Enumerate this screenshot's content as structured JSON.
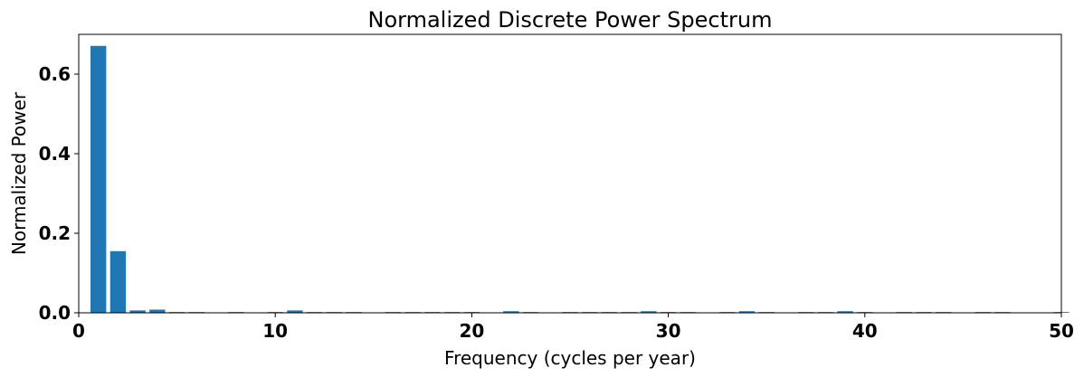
{
  "chart_data": {
    "type": "bar",
    "title": "Normalized Discrete Power Spectrum",
    "xlabel": "Frequency (cycles per year)",
    "ylabel": "Normalized Power",
    "xlim": [
      0,
      50
    ],
    "ylim": [
      0,
      0.7
    ],
    "xticks": [
      0,
      10,
      20,
      30,
      40,
      50
    ],
    "yticks": [
      0.0,
      0.2,
      0.4,
      0.6
    ],
    "xtick_labels": [
      "0",
      "10",
      "20",
      "30",
      "40",
      "50"
    ],
    "ytick_labels": [
      "0.0",
      "0.2",
      "0.4",
      "0.6"
    ],
    "grid": false,
    "bar_color": "#1f77b4",
    "bar_width": 0.8,
    "x": [
      1,
      2,
      3,
      4,
      5,
      6,
      7,
      8,
      9,
      10,
      11,
      12,
      13,
      14,
      15,
      16,
      17,
      18,
      19,
      20,
      21,
      22,
      23,
      24,
      25,
      26,
      27,
      28,
      29,
      30,
      31,
      32,
      33,
      34,
      35,
      36,
      37,
      38,
      39,
      40,
      41,
      42,
      43,
      44,
      45,
      46,
      47,
      48,
      49,
      50
    ],
    "values": [
      0.671,
      0.155,
      0.006,
      0.008,
      0.002,
      0.002,
      0.0005,
      0.002,
      0.0005,
      0.002,
      0.006,
      0.002,
      0.002,
      0.002,
      0.0005,
      0.002,
      0.002,
      0.002,
      0.002,
      0.002,
      0.0005,
      0.004,
      0.002,
      0.0005,
      0.002,
      0.002,
      0.002,
      0.002,
      0.004,
      0.002,
      0.002,
      0.0005,
      0.002,
      0.004,
      0.002,
      0.0005,
      0.002,
      0.002,
      0.004,
      0.002,
      0.0005,
      0.002,
      0.002,
      0.002,
      0.0005,
      0.002,
      0.002,
      0.0005,
      0.0005,
      0.002
    ]
  }
}
